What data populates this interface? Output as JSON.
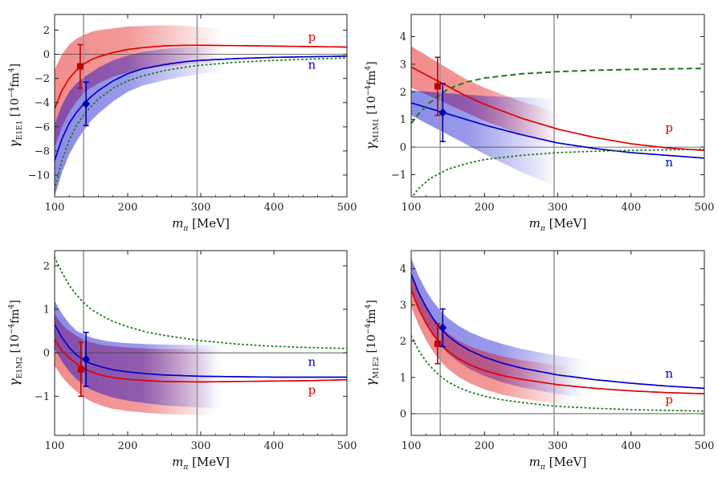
{
  "chart_data": [
    {
      "type": "line",
      "id": "E1E1",
      "ylabel": {
        "symbol": "γ",
        "sub": "E1E1",
        "pre": " [10",
        "exp1": "−4",
        "mid": "fm",
        "exp2": "4",
        "post": "]"
      },
      "xlabel": {
        "symbol": "m",
        "sub": "π",
        "unit": " [MeV]"
      },
      "xlim": [
        100,
        500
      ],
      "ylim": [
        -11.8,
        3.3
      ],
      "xticks": [
        100,
        200,
        300,
        400,
        500
      ],
      "yticks": [
        2,
        0,
        -2,
        -4,
        -6,
        -8,
        -10
      ],
      "ytick_labels": [
        "2",
        "0",
        "−2",
        "−4",
        "−6",
        "−8",
        "−10"
      ],
      "vlines": [
        139.6,
        295
      ],
      "series": [
        {
          "name": "p",
          "color": "#e00000",
          "style": "solid",
          "x": [
            100,
            110,
            120,
            130,
            140,
            150,
            160,
            180,
            200,
            220,
            250,
            280,
            300,
            350,
            400,
            450,
            500
          ],
          "y": [
            -4.5,
            -3.0,
            -2.0,
            -1.3,
            -0.8,
            -0.45,
            -0.2,
            0.15,
            0.4,
            0.55,
            0.7,
            0.75,
            0.75,
            0.72,
            0.68,
            0.64,
            0.6
          ],
          "band_halfwidth": [
            3.2,
            3.0,
            2.8,
            2.6,
            2.4,
            2.3,
            2.2,
            2.0,
            1.9,
            1.8,
            1.7,
            1.6,
            1.5,
            1.4,
            1.3,
            1.2,
            1.1
          ],
          "band_fade": [
            200,
            330
          ]
        },
        {
          "name": "n",
          "color": "#0000cc",
          "style": "solid",
          "x": [
            100,
            110,
            120,
            130,
            140,
            150,
            160,
            180,
            200,
            220,
            250,
            280,
            300,
            350,
            400,
            450,
            500
          ],
          "y": [
            -8.8,
            -7.0,
            -5.7,
            -4.8,
            -4.1,
            -3.5,
            -3.0,
            -2.2,
            -1.6,
            -1.2,
            -0.85,
            -0.6,
            -0.5,
            -0.35,
            -0.25,
            -0.2,
            -0.15
          ],
          "band_halfwidth": [
            3.0,
            2.8,
            2.6,
            2.4,
            2.2,
            2.0,
            1.9,
            1.7,
            1.5,
            1.4,
            1.3,
            1.2,
            1.1,
            1.0,
            0.9,
            0.8,
            0.7
          ],
          "band_fade": [
            200,
            330
          ]
        },
        {
          "name": "dotted",
          "color": "#1a7a1a",
          "style": "dotted",
          "x": [
            100,
            110,
            120,
            130,
            140,
            150,
            160,
            180,
            200,
            220,
            250,
            280,
            300,
            350,
            400,
            450,
            500
          ],
          "y": [
            -11.2,
            -8.8,
            -7.1,
            -5.9,
            -5.0,
            -4.3,
            -3.7,
            -2.8,
            -2.2,
            -1.8,
            -1.35,
            -1.05,
            -0.9,
            -0.65,
            -0.5,
            -0.4,
            -0.3
          ]
        }
      ],
      "points": [
        {
          "series": "p",
          "marker": "square",
          "x": 135,
          "y": -1.0,
          "err": 1.8
        },
        {
          "series": "n",
          "marker": "diamond",
          "x": 143,
          "y": -4.1,
          "err": 1.8
        }
      ],
      "labels": [
        {
          "text": "p",
          "series": "p",
          "x": 452,
          "y": 1.1
        },
        {
          "text": "n",
          "series": "n",
          "x": 452,
          "y": -1.2
        }
      ]
    },
    {
      "type": "line",
      "id": "M1M1",
      "ylabel": {
        "symbol": "γ",
        "sub": "M1M1",
        "pre": " [10",
        "exp1": "−4",
        "mid": "fm",
        "exp2": "4",
        "post": "]"
      },
      "xlabel": {
        "symbol": "m",
        "sub": "π",
        "unit": " [MeV]"
      },
      "xlim": [
        100,
        500
      ],
      "ylim": [
        -1.8,
        4.8
      ],
      "xticks": [
        100,
        200,
        300,
        400,
        500
      ],
      "yticks": [
        4,
        3,
        2,
        1,
        0,
        -1
      ],
      "ytick_labels": [
        "4",
        "3",
        "2",
        "1",
        "0",
        "−1"
      ],
      "vlines": [
        139.6,
        295
      ],
      "series": [
        {
          "name": "p",
          "color": "#e00000",
          "style": "solid",
          "x": [
            100,
            125,
            150,
            175,
            200,
            250,
            300,
            350,
            400,
            450,
            500
          ],
          "y": [
            2.9,
            2.55,
            2.2,
            1.85,
            1.55,
            1.05,
            0.65,
            0.35,
            0.12,
            -0.03,
            -0.12
          ],
          "band_halfwidth": [
            0.75,
            0.7,
            0.65,
            0.6,
            0.6,
            0.6,
            0.6,
            0.6,
            0.6,
            0.6,
            0.6
          ],
          "band_fade": [
            200,
            300
          ]
        },
        {
          "name": "n",
          "color": "#0000cc",
          "style": "solid",
          "x": [
            100,
            125,
            150,
            175,
            200,
            250,
            300,
            350,
            400,
            450,
            500
          ],
          "y": [
            1.6,
            1.4,
            1.2,
            1.0,
            0.8,
            0.45,
            0.15,
            -0.05,
            -0.2,
            -0.3,
            -0.4
          ],
          "band_halfwidth": [
            0.45,
            0.6,
            0.75,
            0.9,
            1.05,
            1.35,
            1.6,
            1.8,
            2.0,
            2.2,
            2.4
          ],
          "band_fade": [
            180,
            300
          ]
        },
        {
          "name": "dashed",
          "color": "#1a7a1a",
          "style": "dashed",
          "x": [
            100,
            110,
            125,
            150,
            175,
            200,
            250,
            300,
            350,
            400,
            450,
            500
          ],
          "y": [
            0.85,
            1.2,
            1.6,
            2.1,
            2.35,
            2.5,
            2.65,
            2.73,
            2.78,
            2.81,
            2.83,
            2.85
          ]
        },
        {
          "name": "dotted",
          "color": "#1a7a1a",
          "style": "dotted",
          "x": [
            100,
            110,
            125,
            150,
            175,
            200,
            250,
            300,
            350,
            400,
            450,
            500
          ],
          "y": [
            -1.85,
            -1.5,
            -1.15,
            -0.8,
            -0.6,
            -0.45,
            -0.3,
            -0.2,
            -0.15,
            -0.12,
            -0.1,
            -0.08
          ]
        }
      ],
      "points": [
        {
          "series": "p",
          "marker": "square",
          "x": 136,
          "y": 2.2,
          "err": 1.05
        },
        {
          "series": "n",
          "marker": "diamond",
          "x": 143,
          "y": 1.25,
          "err": 1.05
        }
      ],
      "labels": [
        {
          "text": "p",
          "series": "p",
          "x": 452,
          "y": 0.55
        },
        {
          "text": "n",
          "series": "n",
          "x": 452,
          "y": -0.7
        }
      ]
    },
    {
      "type": "line",
      "id": "E1M2",
      "ylabel": {
        "symbol": "γ",
        "sub": "E1M2",
        "pre": " [10",
        "exp1": "−4",
        "mid": "fm",
        "exp2": "4",
        "post": "]"
      },
      "xlabel": {
        "symbol": "m",
        "sub": "π",
        "unit": " [MeV]"
      },
      "xlim": [
        100,
        500
      ],
      "ylim": [
        -1.9,
        2.35
      ],
      "xticks": [
        100,
        200,
        300,
        400,
        500
      ],
      "yticks": [
        2,
        1,
        0,
        -1
      ],
      "ytick_labels": [
        "2",
        "1",
        "0",
        "−1"
      ],
      "vlines": [
        139.6,
        295
      ],
      "series": [
        {
          "name": "p",
          "color": "#e00000",
          "style": "solid",
          "x": [
            100,
            110,
            120,
            130,
            140,
            150,
            165,
            180,
            200,
            225,
            250,
            300,
            350,
            400,
            450,
            500
          ],
          "y": [
            0.3,
            0.05,
            -0.12,
            -0.25,
            -0.36,
            -0.44,
            -0.52,
            -0.57,
            -0.61,
            -0.64,
            -0.66,
            -0.67,
            -0.66,
            -0.65,
            -0.64,
            -0.62
          ],
          "band_halfwidth": [
            0.6,
            0.6,
            0.62,
            0.64,
            0.66,
            0.68,
            0.7,
            0.72,
            0.73,
            0.74,
            0.75,
            0.76,
            0.76,
            0.76,
            0.76,
            0.76
          ],
          "band_fade": [
            220,
            320
          ]
        },
        {
          "name": "n",
          "color": "#0000cc",
          "style": "solid",
          "x": [
            100,
            110,
            120,
            130,
            140,
            150,
            165,
            180,
            200,
            225,
            250,
            300,
            350,
            400,
            450,
            500
          ],
          "y": [
            0.65,
            0.35,
            0.12,
            -0.05,
            -0.16,
            -0.25,
            -0.33,
            -0.39,
            -0.44,
            -0.48,
            -0.51,
            -0.54,
            -0.55,
            -0.56,
            -0.56,
            -0.56
          ],
          "band_halfwidth": [
            0.55,
            0.55,
            0.55,
            0.56,
            0.58,
            0.6,
            0.62,
            0.64,
            0.66,
            0.68,
            0.7,
            0.72,
            0.73,
            0.74,
            0.74,
            0.74
          ],
          "band_fade": [
            220,
            330
          ]
        },
        {
          "name": "dotted",
          "color": "#1a7a1a",
          "style": "dotted",
          "x": [
            100,
            110,
            120,
            130,
            140,
            150,
            165,
            180,
            200,
            225,
            250,
            300,
            350,
            400,
            450,
            500
          ],
          "y": [
            2.2,
            1.85,
            1.55,
            1.33,
            1.15,
            1.0,
            0.85,
            0.72,
            0.6,
            0.48,
            0.4,
            0.28,
            0.2,
            0.15,
            0.12,
            0.1
          ]
        }
      ],
      "points": [
        {
          "series": "p",
          "marker": "square",
          "x": 136,
          "y": -0.38,
          "err": 0.62
        },
        {
          "series": "n",
          "marker": "diamond",
          "x": 143,
          "y": -0.15,
          "err": 0.62
        }
      ],
      "labels": [
        {
          "text": "n",
          "series": "n",
          "x": 452,
          "y": -0.3
        },
        {
          "text": "p",
          "series": "p",
          "x": 452,
          "y": -0.95
        }
      ]
    },
    {
      "type": "line",
      "id": "M1E2",
      "ylabel": {
        "symbol": "γ",
        "sub": "M1E2",
        "pre": " [10",
        "exp1": "−4",
        "mid": "fm",
        "exp2": "4",
        "post": "]"
      },
      "xlabel": {
        "symbol": "m",
        "sub": "π",
        "unit": " [MeV]"
      },
      "xlim": [
        100,
        500
      ],
      "ylim": [
        -0.6,
        4.5
      ],
      "xticks": [
        100,
        200,
        300,
        400,
        500
      ],
      "yticks": [
        4,
        3,
        2,
        1,
        0
      ],
      "ytick_labels": [
        "4",
        "3",
        "2",
        "1",
        "0"
      ],
      "vlines": [
        139.6,
        295
      ],
      "series": [
        {
          "name": "n",
          "color": "#0000cc",
          "style": "solid",
          "x": [
            100,
            110,
            120,
            130,
            140,
            150,
            165,
            180,
            200,
            225,
            250,
            300,
            350,
            400,
            450,
            500
          ],
          "y": [
            3.85,
            3.35,
            2.95,
            2.62,
            2.36,
            2.15,
            1.92,
            1.74,
            1.56,
            1.39,
            1.26,
            1.07,
            0.94,
            0.84,
            0.76,
            0.7
          ],
          "band_halfwidth": [
            0.45,
            0.45,
            0.46,
            0.47,
            0.48,
            0.49,
            0.5,
            0.51,
            0.52,
            0.53,
            0.53,
            0.53,
            0.53,
            0.53,
            0.53,
            0.53
          ],
          "band_fade": [
            220,
            340
          ]
        },
        {
          "name": "p",
          "color": "#e00000",
          "style": "solid",
          "x": [
            100,
            110,
            120,
            130,
            140,
            150,
            165,
            180,
            200,
            225,
            250,
            300,
            350,
            400,
            450,
            500
          ],
          "y": [
            3.4,
            2.9,
            2.5,
            2.18,
            1.93,
            1.73,
            1.51,
            1.35,
            1.19,
            1.05,
            0.95,
            0.8,
            0.7,
            0.63,
            0.58,
            0.55
          ],
          "band_halfwidth": [
            0.45,
            0.45,
            0.46,
            0.47,
            0.48,
            0.49,
            0.5,
            0.51,
            0.52,
            0.53,
            0.53,
            0.53,
            0.53,
            0.53,
            0.53,
            0.53
          ],
          "band_fade": [
            220,
            320
          ]
        },
        {
          "name": "dotted",
          "color": "#1a7a1a",
          "style": "dotted",
          "x": [
            100,
            110,
            120,
            130,
            140,
            150,
            165,
            180,
            200,
            225,
            250,
            300,
            350,
            400,
            450,
            500
          ],
          "y": [
            2.15,
            1.75,
            1.45,
            1.22,
            1.03,
            0.88,
            0.72,
            0.6,
            0.48,
            0.38,
            0.31,
            0.2,
            0.15,
            0.11,
            0.09,
            0.07
          ]
        }
      ],
      "points": [
        {
          "series": "p",
          "marker": "square",
          "x": 136,
          "y": 1.93,
          "err": 0.55
        },
        {
          "series": "n",
          "marker": "diamond",
          "x": 143,
          "y": 2.37,
          "err": 0.52
        }
      ],
      "labels": [
        {
          "text": "n",
          "series": "n",
          "x": 452,
          "y": 1.0
        },
        {
          "text": "p",
          "series": "p",
          "x": 452,
          "y": 0.28
        }
      ]
    }
  ]
}
